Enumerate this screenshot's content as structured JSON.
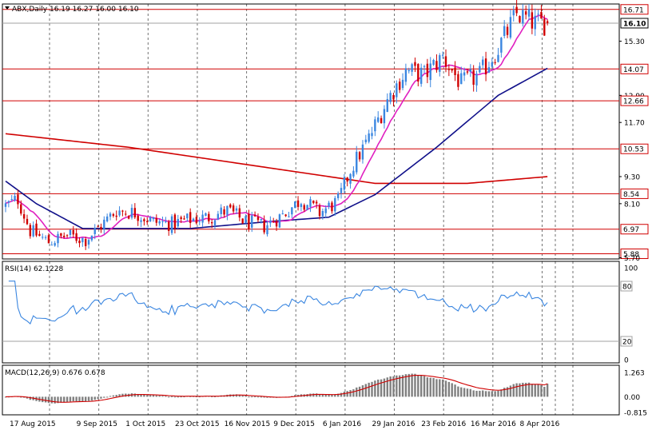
{
  "chart_data": [
    {
      "type": "candlestick",
      "header": "ABX,Daily  16.19 16.27 16.00 16.10",
      "colors": {
        "up": "#3a86e0",
        "down": "#d00000",
        "ma_fast": "#e020c0",
        "ma_mid": "#10108a",
        "ma_slow": "#d00000",
        "hline": "#d00000",
        "grid": "#000000"
      },
      "price_ticks": [
        {
          "value": 16.71,
          "label": "16.71",
          "boxed": true
        },
        {
          "value": 16.1,
          "label": "16.10",
          "boxed": true,
          "current": true
        },
        {
          "value": 15.3,
          "label": "15.30"
        },
        {
          "value": 14.07,
          "label": "14.07",
          "boxed": true
        },
        {
          "value": 12.9,
          "label": "12.90"
        },
        {
          "value": 12.66,
          "label": "12.66",
          "boxed": true
        },
        {
          "value": 11.7,
          "label": "11.70"
        },
        {
          "value": 10.53,
          "label": "10.53",
          "boxed": true
        },
        {
          "value": 9.3,
          "label": "9.30"
        },
        {
          "value": 8.54,
          "label": "8.54",
          "boxed": true
        },
        {
          "value": 8.1,
          "label": "8.10"
        },
        {
          "value": 6.97,
          "label": "6.97",
          "boxed": true
        },
        {
          "value": 5.88,
          "label": "5.88",
          "boxed": true
        },
        {
          "value": 5.7,
          "label": "5.70"
        }
      ],
      "support_resistance": [
        16.71,
        14.07,
        12.66,
        10.53,
        8.54,
        6.97,
        5.88
      ],
      "x_dates": [
        "17 Aug 2015",
        "9 Sep 2015",
        "1 Oct 2015",
        "23 Oct 2015",
        "16 Nov 2015",
        "9 Dec 2015",
        "6 Jan 2016",
        "29 Jan 2016",
        "23 Feb 2016",
        "16 Mar 2016",
        "8 Apr 2016"
      ],
      "close_anchors": [
        [
          0,
          8.0
        ],
        [
          4,
          8.3
        ],
        [
          8,
          6.9
        ],
        [
          14,
          6.4
        ],
        [
          20,
          6.7
        ],
        [
          26,
          6.5
        ],
        [
          30,
          7.0
        ],
        [
          36,
          7.8
        ],
        [
          42,
          7.7
        ],
        [
          48,
          7.3
        ],
        [
          54,
          7.2
        ],
        [
          60,
          7.4
        ],
        [
          66,
          7.5
        ],
        [
          72,
          7.8
        ],
        [
          78,
          7.3
        ],
        [
          84,
          7.1
        ],
        [
          90,
          7.6
        ],
        [
          96,
          8.3
        ],
        [
          102,
          7.7
        ],
        [
          108,
          8.2
        ],
        [
          112,
          9.6
        ],
        [
          118,
          11.0
        ],
        [
          124,
          12.7
        ],
        [
          130,
          14.0
        ],
        [
          136,
          13.8
        ],
        [
          142,
          14.6
        ],
        [
          148,
          13.4
        ],
        [
          154,
          13.8
        ],
        [
          160,
          15.0
        ],
        [
          166,
          16.5
        ],
        [
          172,
          16.1
        ],
        [
          176,
          16.1
        ]
      ],
      "ma200_anchors": [
        [
          0,
          11.2
        ],
        [
          40,
          10.6
        ],
        [
          80,
          9.8
        ],
        [
          120,
          9.0
        ],
        [
          150,
          9.0
        ],
        [
          176,
          9.3
        ]
      ],
      "ma50_anchors": [
        [
          0,
          9.1
        ],
        [
          10,
          8.1
        ],
        [
          25,
          7.0
        ],
        [
          60,
          7.0
        ],
        [
          85,
          7.3
        ],
        [
          105,
          7.5
        ],
        [
          120,
          8.5
        ],
        [
          140,
          10.6
        ],
        [
          160,
          12.9
        ],
        [
          176,
          14.1
        ]
      ]
    },
    {
      "type": "line",
      "header": "RSI(14) 62.1228",
      "ticks": [
        {
          "value": 100,
          "label": "100"
        },
        {
          "value": 80,
          "label": "80",
          "boxed": true
        },
        {
          "value": 20,
          "label": "20",
          "boxed": true
        },
        {
          "value": 0,
          "label": "0"
        }
      ],
      "levels": [
        80,
        20
      ],
      "color": "#3a86e0",
      "last": 62.1228
    },
    {
      "type": "bar",
      "header": "MACD(12,26,9) 0.676 0.678",
      "ticks": [
        {
          "value": 1.263,
          "label": "1.263"
        },
        {
          "value": 0.0,
          "label": "0.00"
        },
        {
          "value": -0.815,
          "label": "-0.815"
        }
      ],
      "main": 0.676,
      "signal": 0.678,
      "bar_color": "#808080",
      "signal_color": "#d00000"
    }
  ]
}
